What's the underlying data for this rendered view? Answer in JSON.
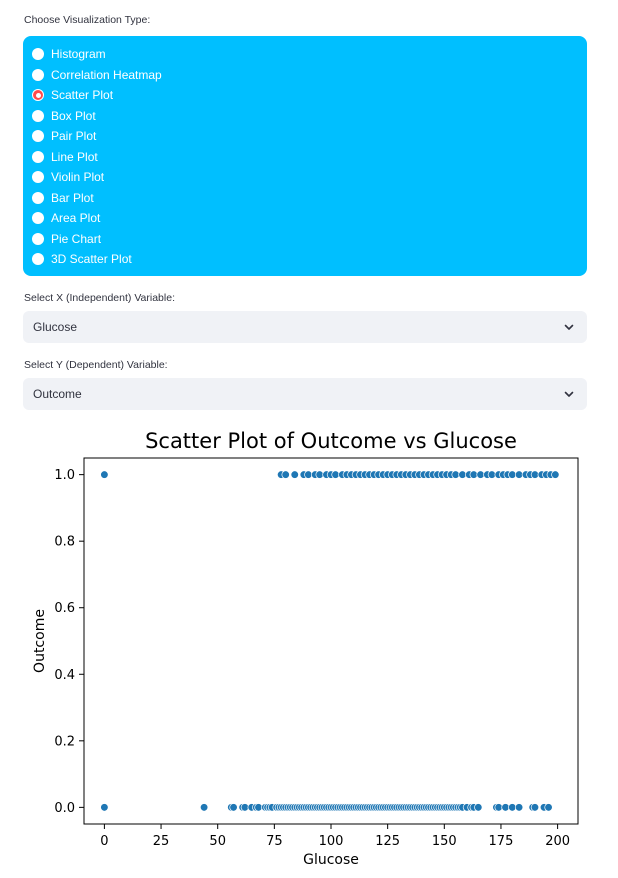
{
  "viz_type": {
    "label": "Choose Visualization Type:",
    "options": [
      "Histogram",
      "Correlation Heatmap",
      "Scatter Plot",
      "Box Plot",
      "Pair Plot",
      "Line Plot",
      "Violin Plot",
      "Bar Plot",
      "Area Plot",
      "Pie Chart",
      "3D Scatter Plot"
    ],
    "selected": "Scatter Plot"
  },
  "x_select": {
    "label": "Select X (Independent) Variable:",
    "value": "Glucose",
    "icon": "chevron-down-icon"
  },
  "y_select": {
    "label": "Select Y (Dependent) Variable:",
    "value": "Outcome",
    "icon": "chevron-down-icon"
  },
  "colors": {
    "panel": "#00bfff",
    "radio_selected": "#ff4b4b",
    "marker": "#1f77b4"
  },
  "chart_data": {
    "type": "scatter",
    "title": "Scatter Plot of Outcome vs Glucose",
    "xlabel": "Glucose",
    "ylabel": "Outcome",
    "xlim": [
      -9,
      209
    ],
    "ylim": [
      -0.05,
      1.05
    ],
    "xticks": [
      0,
      25,
      50,
      75,
      100,
      125,
      150,
      175,
      200
    ],
    "yticks": [
      0.0,
      0.2,
      0.4,
      0.6,
      0.8,
      1.0
    ],
    "ytick_labels": [
      "0.0",
      "0.2",
      "0.4",
      "0.6",
      "0.8",
      "1.0"
    ],
    "grid": false,
    "series": [
      {
        "x": [
          0,
          78,
          80,
          84,
          88,
          90,
          93,
          95,
          98,
          100,
          102,
          105,
          107,
          109,
          111,
          113,
          115,
          117,
          119,
          121,
          123,
          125,
          127,
          129,
          131,
          133,
          135,
          137,
          139,
          141,
          143,
          145,
          147,
          149,
          151,
          153,
          155,
          158,
          161,
          163,
          166,
          169,
          171,
          174,
          176,
          178,
          180,
          183,
          186,
          188,
          190,
          193,
          195,
          197,
          199
        ],
        "y": [
          1,
          1,
          1,
          1,
          1,
          1,
          1,
          1,
          1,
          1,
          1,
          1,
          1,
          1,
          1,
          1,
          1,
          1,
          1,
          1,
          1,
          1,
          1,
          1,
          1,
          1,
          1,
          1,
          1,
          1,
          1,
          1,
          1,
          1,
          1,
          1,
          1,
          1,
          1,
          1,
          1,
          1,
          1,
          1,
          1,
          1,
          1,
          1,
          1,
          1,
          1,
          1,
          1,
          1,
          1
        ]
      },
      {
        "x": [
          0,
          44,
          56,
          57,
          61,
          62,
          65,
          67,
          68,
          71,
          72,
          73,
          74,
          76,
          77,
          78,
          79,
          80,
          81,
          82,
          83,
          84,
          85,
          86,
          87,
          88,
          89,
          90,
          91,
          92,
          93,
          94,
          95,
          96,
          97,
          98,
          99,
          100,
          101,
          102,
          103,
          104,
          105,
          106,
          107,
          108,
          109,
          110,
          111,
          112,
          113,
          114,
          115,
          116,
          117,
          118,
          119,
          120,
          121,
          122,
          123,
          124,
          125,
          126,
          127,
          128,
          129,
          130,
          131,
          132,
          133,
          134,
          135,
          136,
          137,
          138,
          139,
          140,
          141,
          142,
          143,
          144,
          145,
          146,
          147,
          148,
          149,
          150,
          151,
          152,
          153,
          154,
          155,
          156,
          157,
          158,
          160,
          162,
          163,
          165,
          173,
          174,
          177,
          180,
          183,
          189,
          190,
          194,
          196
        ],
        "y": [
          0,
          0,
          0,
          0,
          0,
          0,
          0,
          0,
          0,
          0,
          0,
          0,
          0,
          0,
          0,
          0,
          0,
          0,
          0,
          0,
          0,
          0,
          0,
          0,
          0,
          0,
          0,
          0,
          0,
          0,
          0,
          0,
          0,
          0,
          0,
          0,
          0,
          0,
          0,
          0,
          0,
          0,
          0,
          0,
          0,
          0,
          0,
          0,
          0,
          0,
          0,
          0,
          0,
          0,
          0,
          0,
          0,
          0,
          0,
          0,
          0,
          0,
          0,
          0,
          0,
          0,
          0,
          0,
          0,
          0,
          0,
          0,
          0,
          0,
          0,
          0,
          0,
          0,
          0,
          0,
          0,
          0,
          0,
          0,
          0,
          0,
          0,
          0,
          0,
          0,
          0,
          0,
          0,
          0,
          0,
          0,
          0,
          0,
          0,
          0,
          0,
          0,
          0,
          0,
          0,
          0,
          0,
          0,
          0
        ]
      }
    ]
  }
}
